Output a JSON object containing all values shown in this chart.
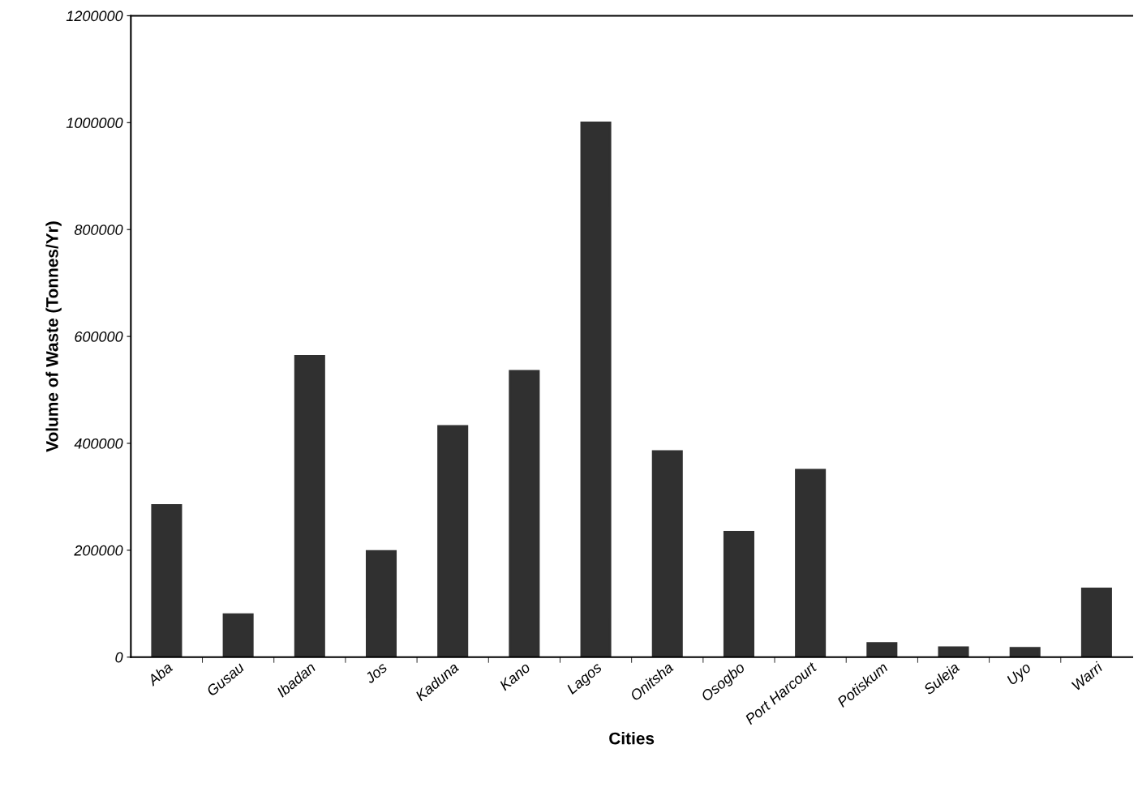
{
  "chart_data": {
    "type": "bar",
    "xlabel": "Cities",
    "ylabel": "Volume of Waste (Tonnes/Yr)",
    "categories": [
      "Aba",
      "Gusau",
      "Ibadan",
      "Jos",
      "Kaduna",
      "Kano",
      "Lagos",
      "Onitsha",
      "Osogbo",
      "Port Harcourt",
      "Potiskum",
      "Suleja",
      "Uyo",
      "Warri"
    ],
    "values": [
      284000,
      80000,
      563000,
      198000,
      432000,
      535000,
      1000000,
      385000,
      234000,
      350000,
      26000,
      18000,
      17000,
      128000
    ],
    "color": "#303030",
    "ylim": [
      0,
      1200000
    ],
    "yticks": [
      0,
      200000,
      400000,
      600000,
      800000,
      1000000,
      1200000
    ],
    "grid": false,
    "legend": false
  }
}
